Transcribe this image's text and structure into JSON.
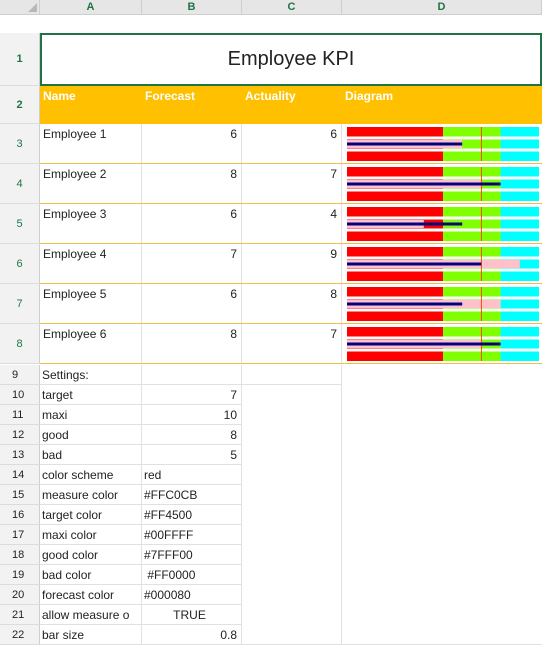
{
  "columns": [
    "A",
    "B",
    "C",
    "D"
  ],
  "rows": [
    "1",
    "2",
    "3",
    "4",
    "5",
    "6",
    "7",
    "8",
    "9",
    "10",
    "11",
    "12",
    "13",
    "14",
    "15",
    "16",
    "17",
    "18",
    "19",
    "20",
    "21",
    "22"
  ],
  "title": "Employee KPI",
  "headers": {
    "name": "Name",
    "forecast": "Forecast",
    "actuality": "Actuality",
    "diagram": "Diagram"
  },
  "employees": [
    {
      "name": "Employee 1",
      "forecast": "6",
      "actuality": "6"
    },
    {
      "name": "Employee 2",
      "forecast": "8",
      "actuality": "7"
    },
    {
      "name": "Employee 3",
      "forecast": "6",
      "actuality": "4"
    },
    {
      "name": "Employee 4",
      "forecast": "7",
      "actuality": "9"
    },
    {
      "name": "Employee 5",
      "forecast": "6",
      "actuality": "8"
    },
    {
      "name": "Employee 6",
      "forecast": "8",
      "actuality": "7"
    }
  ],
  "settings_label": "Settings:",
  "settings": [
    {
      "key": "target",
      "value": "7",
      "align": "right"
    },
    {
      "key": "maxi",
      "value": "10",
      "align": "right"
    },
    {
      "key": "good",
      "value": "8",
      "align": "right"
    },
    {
      "key": "bad",
      "value": "5",
      "align": "right"
    },
    {
      "key": "color scheme",
      "value": "red",
      "align": "left"
    },
    {
      "key": "measure color",
      "value": "#FFC0CB",
      "align": "left"
    },
    {
      "key": "target color",
      "value": "#FF4500",
      "align": "left"
    },
    {
      "key": "maxi color",
      "value": "#00FFFF",
      "align": "left"
    },
    {
      "key": "good color",
      "value": "#7FFF00",
      "align": "left"
    },
    {
      "key": "bad color",
      "value": " #FF0000",
      "align": "left"
    },
    {
      "key": "forecast color",
      "value": "#000080",
      "align": "left"
    },
    {
      "key": "allow measure o",
      "value": "TRUE",
      "align": "center"
    },
    {
      "key": "bar size",
      "value": "0.8",
      "align": "right"
    }
  ],
  "colors": {
    "header_bg": "#FFC000",
    "grid_accent": "#217346",
    "bad": "#FF0000",
    "good": "#7FFF00",
    "maxi": "#00FFFF",
    "measure": "#FFC0CB",
    "target": "#FF4500",
    "forecast": "#000080"
  },
  "chart_data": {
    "type": "bar",
    "variant": "bullet",
    "categories": [
      "Employee 1",
      "Employee 2",
      "Employee 3",
      "Employee 4",
      "Employee 5",
      "Employee 6"
    ],
    "series": [
      {
        "name": "Forecast",
        "values": [
          6,
          8,
          6,
          7,
          6,
          8
        ]
      },
      {
        "name": "Actuality",
        "values": [
          6,
          7,
          4,
          9,
          8,
          7
        ]
      }
    ],
    "target": 7,
    "bad": 5,
    "good": 8,
    "maxi": 10,
    "xlim": [
      0,
      10
    ],
    "grid": false
  }
}
